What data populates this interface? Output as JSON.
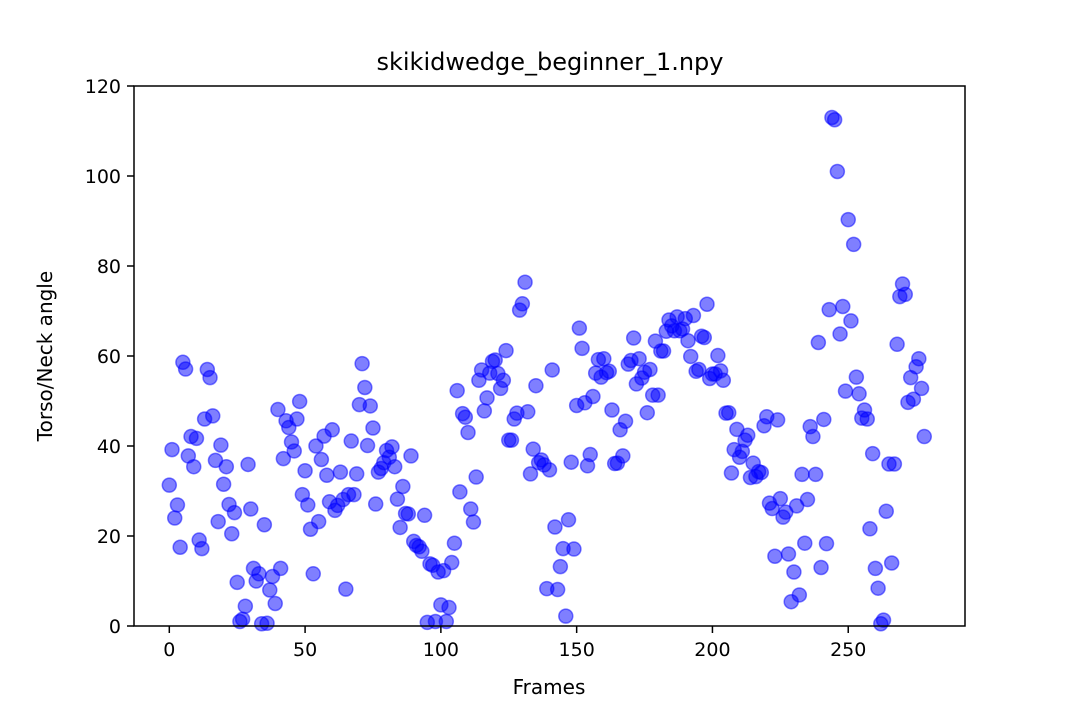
{
  "chart_data": {
    "type": "scatter",
    "title": "skikidwedge_beginner_1.npy",
    "xlabel": "Frames",
    "ylabel": "Torso/Neck angle",
    "xlim": [
      -13,
      293
    ],
    "ylim": [
      0,
      120
    ],
    "xticks": [
      0,
      50,
      100,
      150,
      200,
      250
    ],
    "yticks": [
      0,
      20,
      40,
      60,
      80,
      100,
      120
    ],
    "grid": false,
    "marker_color": "#0000ff",
    "marker_alpha": 0.5,
    "points": [
      [
        0,
        31.3
      ],
      [
        1,
        39.2
      ],
      [
        2,
        24
      ],
      [
        3,
        26.9
      ],
      [
        4,
        17.5
      ],
      [
        5,
        58.6
      ],
      [
        6,
        57.1
      ],
      [
        7,
        37.8
      ],
      [
        8,
        42.1
      ],
      [
        9,
        35.4
      ],
      [
        10,
        41.7
      ],
      [
        11,
        19.1
      ],
      [
        12,
        17.2
      ],
      [
        13,
        46
      ],
      [
        14,
        57
      ],
      [
        15,
        55.2
      ],
      [
        16,
        46.7
      ],
      [
        17,
        36.8
      ],
      [
        18,
        23.2
      ],
      [
        19,
        40.2
      ],
      [
        20,
        31.5
      ],
      [
        21,
        35.4
      ],
      [
        22,
        27
      ],
      [
        23,
        20.5
      ],
      [
        24,
        25.2
      ],
      [
        25,
        9.7
      ],
      [
        26,
        1
      ],
      [
        27,
        1.5
      ],
      [
        28,
        4.4
      ],
      [
        29,
        35.9
      ],
      [
        30,
        26
      ],
      [
        31,
        12.8
      ],
      [
        32,
        10
      ],
      [
        33,
        11.6
      ],
      [
        34,
        0.5
      ],
      [
        35,
        22.5
      ],
      [
        36,
        0.6
      ],
      [
        37,
        8
      ],
      [
        38,
        11
      ],
      [
        39,
        5
      ],
      [
        40,
        48.1
      ],
      [
        41,
        12.8
      ],
      [
        42,
        37.2
      ],
      [
        43,
        45.6
      ],
      [
        44,
        44.1
      ],
      [
        45,
        40.9
      ],
      [
        46,
        38.9
      ],
      [
        47,
        46
      ],
      [
        48,
        49.9
      ],
      [
        49,
        29.2
      ],
      [
        50,
        34.5
      ],
      [
        51,
        26.9
      ],
      [
        52,
        21.5
      ],
      [
        53,
        11.6
      ],
      [
        54,
        40
      ],
      [
        55,
        23.2
      ],
      [
        56,
        37
      ],
      [
        57,
        42.2
      ],
      [
        58,
        33.5
      ],
      [
        59,
        27.6
      ],
      [
        60,
        43.6
      ],
      [
        61,
        25.7
      ],
      [
        62,
        26.8
      ],
      [
        63,
        34.2
      ],
      [
        64,
        28.1
      ],
      [
        65,
        8.2
      ],
      [
        66,
        29.2
      ],
      [
        67,
        41.1
      ],
      [
        68,
        29.2
      ],
      [
        69,
        33.8
      ],
      [
        70,
        49.2
      ],
      [
        71,
        58.3
      ],
      [
        72,
        53
      ],
      [
        73,
        40.1
      ],
      [
        74,
        48.9
      ],
      [
        75,
        44
      ],
      [
        76,
        27.1
      ],
      [
        77,
        34.2
      ],
      [
        78,
        35
      ],
      [
        79,
        36.3
      ],
      [
        80,
        39
      ],
      [
        81,
        37.5
      ],
      [
        82,
        39.8
      ],
      [
        83,
        35.4
      ],
      [
        84,
        28.2
      ],
      [
        85,
        21.9
      ],
      [
        86,
        31
      ],
      [
        87,
        25
      ],
      [
        88,
        24.9
      ],
      [
        89,
        37.8
      ],
      [
        90,
        18.8
      ],
      [
        91,
        17.9
      ],
      [
        92,
        17.6
      ],
      [
        93,
        16.6
      ],
      [
        94,
        24.6
      ],
      [
        95,
        0.8
      ],
      [
        96,
        13.8
      ],
      [
        97,
        13.5
      ],
      [
        98,
        1
      ],
      [
        99,
        12
      ],
      [
        100,
        4.7
      ],
      [
        101,
        12.3
      ],
      [
        102,
        1
      ],
      [
        103,
        4.1
      ],
      [
        104,
        14.1
      ],
      [
        105,
        18.4
      ],
      [
        106,
        52.3
      ],
      [
        107,
        29.8
      ],
      [
        108,
        47.2
      ],
      [
        109,
        46.4
      ],
      [
        110,
        43
      ],
      [
        111,
        26
      ],
      [
        112,
        23.1
      ],
      [
        113,
        33.1
      ],
      [
        114,
        54.6
      ],
      [
        115,
        56.9
      ],
      [
        116,
        47.8
      ],
      [
        117,
        50.7
      ],
      [
        118,
        56.2
      ],
      [
        119,
        58.8
      ],
      [
        120,
        59.1
      ],
      [
        121,
        56.1
      ],
      [
        122,
        52.8
      ],
      [
        123,
        54.6
      ],
      [
        124,
        61.2
      ],
      [
        125,
        41.3
      ],
      [
        126,
        41.3
      ],
      [
        127,
        46
      ],
      [
        128,
        47.3
      ],
      [
        129,
        70.2
      ],
      [
        130,
        71.6
      ],
      [
        131,
        76.4
      ],
      [
        132,
        47.6
      ],
      [
        133,
        33.8
      ],
      [
        134,
        39.3
      ],
      [
        135,
        53.4
      ],
      [
        136,
        36.3
      ],
      [
        137,
        36.9
      ],
      [
        138,
        35.8
      ],
      [
        139,
        8.3
      ],
      [
        140,
        34.7
      ],
      [
        141,
        56.9
      ],
      [
        142,
        22
      ],
      [
        143,
        8.1
      ],
      [
        144,
        13.2
      ],
      [
        145,
        17.2
      ],
      [
        146,
        2.2
      ],
      [
        147,
        23.6
      ],
      [
        148,
        36.4
      ],
      [
        149,
        17.1
      ],
      [
        150,
        49
      ],
      [
        151,
        66.2
      ],
      [
        152,
        61.7
      ],
      [
        153,
        49.6
      ],
      [
        154,
        35.6
      ],
      [
        155,
        38.1
      ],
      [
        156,
        51
      ],
      [
        157,
        56.2
      ],
      [
        158,
        59.2
      ],
      [
        159,
        55.3
      ],
      [
        160,
        59.4
      ],
      [
        161,
        56.3
      ],
      [
        162,
        56.6
      ],
      [
        163,
        48
      ],
      [
        164,
        36.1
      ],
      [
        165,
        36.2
      ],
      [
        166,
        43.6
      ],
      [
        167,
        37.8
      ],
      [
        168,
        45.5
      ],
      [
        169,
        58.2
      ],
      [
        170,
        59
      ],
      [
        171,
        64
      ],
      [
        172,
        53.8
      ],
      [
        173,
        59.4
      ],
      [
        174,
        55.1
      ],
      [
        175,
        56.4
      ],
      [
        176,
        47.4
      ],
      [
        177,
        57
      ],
      [
        178,
        51.3
      ],
      [
        179,
        63.3
      ],
      [
        180,
        51.3
      ],
      [
        181,
        61.1
      ],
      [
        182,
        61.1
      ],
      [
        183,
        65.5
      ],
      [
        184,
        68
      ],
      [
        185,
        66.7
      ],
      [
        186,
        65.6
      ],
      [
        187,
        68.7
      ],
      [
        188,
        65.6
      ],
      [
        189,
        66
      ],
      [
        190,
        68.3
      ],
      [
        191,
        63.4
      ],
      [
        192,
        59.9
      ],
      [
        193,
        69
      ],
      [
        194,
        56.6
      ],
      [
        195,
        57
      ],
      [
        196,
        64.4
      ],
      [
        197,
        64.1
      ],
      [
        198,
        71.5
      ],
      [
        199,
        55
      ],
      [
        200,
        56
      ],
      [
        201,
        56
      ],
      [
        202,
        60.1
      ],
      [
        203,
        56.7
      ],
      [
        204,
        54.6
      ],
      [
        205,
        47.3
      ],
      [
        206,
        47.4
      ],
      [
        207,
        34
      ],
      [
        208,
        39.2
      ],
      [
        209,
        43.7
      ],
      [
        210,
        37.5
      ],
      [
        211,
        38.8
      ],
      [
        212,
        41.3
      ],
      [
        213,
        42.4
      ],
      [
        214,
        33
      ],
      [
        215,
        36.2
      ],
      [
        216,
        33.2
      ],
      [
        217,
        34.3
      ],
      [
        218,
        34.1
      ],
      [
        219,
        44.5
      ],
      [
        220,
        46.5
      ],
      [
        221,
        27.3
      ],
      [
        222,
        26.1
      ],
      [
        223,
        15.5
      ],
      [
        224,
        45.8
      ],
      [
        225,
        28.3
      ],
      [
        226,
        24.2
      ],
      [
        227,
        25.3
      ],
      [
        228,
        16
      ],
      [
        229,
        5.4
      ],
      [
        230,
        12
      ],
      [
        231,
        26.7
      ],
      [
        232,
        6.9
      ],
      [
        233,
        33.7
      ],
      [
        234,
        18.4
      ],
      [
        235,
        28.1
      ],
      [
        236,
        44.3
      ],
      [
        237,
        42.1
      ],
      [
        238,
        33.7
      ],
      [
        239,
        63
      ],
      [
        240,
        13
      ],
      [
        241,
        45.9
      ],
      [
        242,
        18.3
      ],
      [
        243,
        70.3
      ],
      [
        244,
        113
      ],
      [
        245,
        112.5
      ],
      [
        246,
        101
      ],
      [
        247,
        64.9
      ],
      [
        248,
        71
      ],
      [
        249,
        52.2
      ],
      [
        250,
        90.3
      ],
      [
        251,
        67.8
      ],
      [
        252,
        84.8
      ],
      [
        253,
        55.3
      ],
      [
        254,
        51.6
      ],
      [
        255,
        46.2
      ],
      [
        256,
        48
      ],
      [
        257,
        46
      ],
      [
        258,
        21.6
      ],
      [
        259,
        38.3
      ],
      [
        260,
        12.8
      ],
      [
        261,
        8.4
      ],
      [
        262,
        0.5
      ],
      [
        263,
        1.3
      ],
      [
        264,
        25.5
      ],
      [
        265,
        36
      ],
      [
        266,
        14
      ],
      [
        267,
        36
      ],
      [
        268,
        62.6
      ],
      [
        269,
        73.2
      ],
      [
        270,
        76
      ],
      [
        271,
        73.7
      ],
      [
        272,
        49.7
      ],
      [
        273,
        55.2
      ],
      [
        274,
        50.4
      ],
      [
        275,
        57.6
      ],
      [
        276,
        59.4
      ],
      [
        277,
        52.8
      ],
      [
        278,
        42.1
      ]
    ]
  }
}
